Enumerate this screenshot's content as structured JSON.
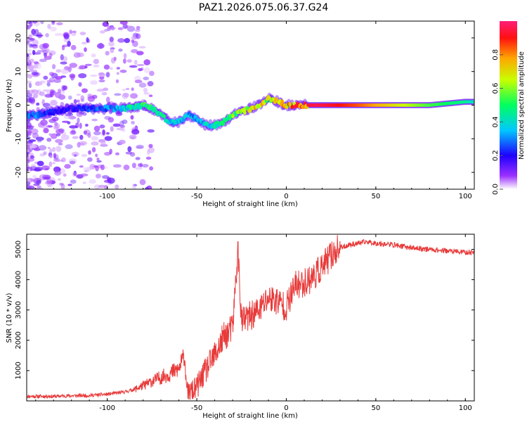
{
  "title": "PAZ1.2026.075.06.37.G24",
  "chart_data": [
    {
      "type": "heatmap",
      "xlabel": "Height of straight line (km)",
      "ylabel": "Frequency (Hz)",
      "xlim": [
        -145,
        105
      ],
      "ylim": [
        -25,
        25
      ],
      "xticks": [
        -100,
        -50,
        0,
        50,
        100
      ],
      "yticks": [
        -20,
        -10,
        0,
        10,
        20
      ],
      "colorbar": {
        "label": "Normalized spectral amplitude",
        "range": [
          0,
          1
        ],
        "ticks": [
          "0.0",
          "0.2",
          "0.4",
          "0.6",
          "0.8"
        ],
        "tick_values": [
          0.0,
          0.2,
          0.4,
          0.6,
          0.8
        ]
      },
      "ridge": {
        "description": "dominant frequency track vs height",
        "x": [
          -140,
          -130,
          -120,
          -110,
          -100,
          -90,
          -80,
          -75,
          -70,
          -65,
          -60,
          -55,
          -50,
          -45,
          -40,
          -35,
          -30,
          -25,
          -20,
          -15,
          -10,
          -5,
          0,
          5,
          10,
          20,
          40,
          60,
          80,
          100,
          105
        ],
        "y": [
          -3,
          -2,
          -1,
          -1,
          -1,
          -1,
          0,
          -1,
          -3,
          -5,
          -5,
          -3,
          -4,
          -6,
          -6,
          -5,
          -3,
          -2,
          -1,
          0,
          2,
          1,
          0,
          0,
          0,
          0,
          0,
          0,
          0,
          1,
          1
        ],
        "amplitude": [
          0.3,
          0.2,
          0.2,
          0.25,
          0.3,
          0.4,
          0.5,
          0.45,
          0.45,
          0.4,
          0.35,
          0.35,
          0.35,
          0.4,
          0.45,
          0.5,
          0.55,
          0.65,
          0.7,
          0.75,
          0.65,
          0.7,
          0.75,
          0.85,
          0.95,
          0.95,
          0.85,
          0.7,
          0.55,
          0.45,
          0.4
        ]
      }
    },
    {
      "type": "line",
      "xlabel": "Height of straight line (km)",
      "ylabel": "SNR (10 * v/v)",
      "xlim": [
        -145,
        105
      ],
      "ylim": [
        0,
        5500
      ],
      "xticks": [
        -100,
        -50,
        0,
        50,
        100
      ],
      "yticks": [
        1000,
        2000,
        3000,
        4000,
        5000
      ],
      "series": [
        {
          "name": "SNR",
          "color": "#e83a3a",
          "x": [
            -145,
            -130,
            -120,
            -110,
            -100,
            -90,
            -85,
            -80,
            -75,
            -70,
            -65,
            -60,
            -57,
            -55,
            -50,
            -45,
            -40,
            -35,
            -30,
            -27,
            -25,
            -20,
            -15,
            -10,
            -5,
            0,
            5,
            10,
            15,
            20,
            25,
            30,
            35,
            40,
            45,
            50,
            60,
            70,
            80,
            90,
            100,
            105
          ],
          "y": [
            150,
            150,
            170,
            180,
            220,
            300,
            380,
            500,
            650,
            780,
            900,
            1050,
            1500,
            200,
            450,
            1000,
            1500,
            2100,
            2400,
            5000,
            2600,
            2800,
            3000,
            3400,
            3300,
            3100,
            3800,
            3900,
            4100,
            4400,
            4800,
            5050,
            5150,
            5200,
            5250,
            5200,
            5150,
            5050,
            5000,
            4950,
            4900,
            4900
          ]
        }
      ]
    }
  ]
}
